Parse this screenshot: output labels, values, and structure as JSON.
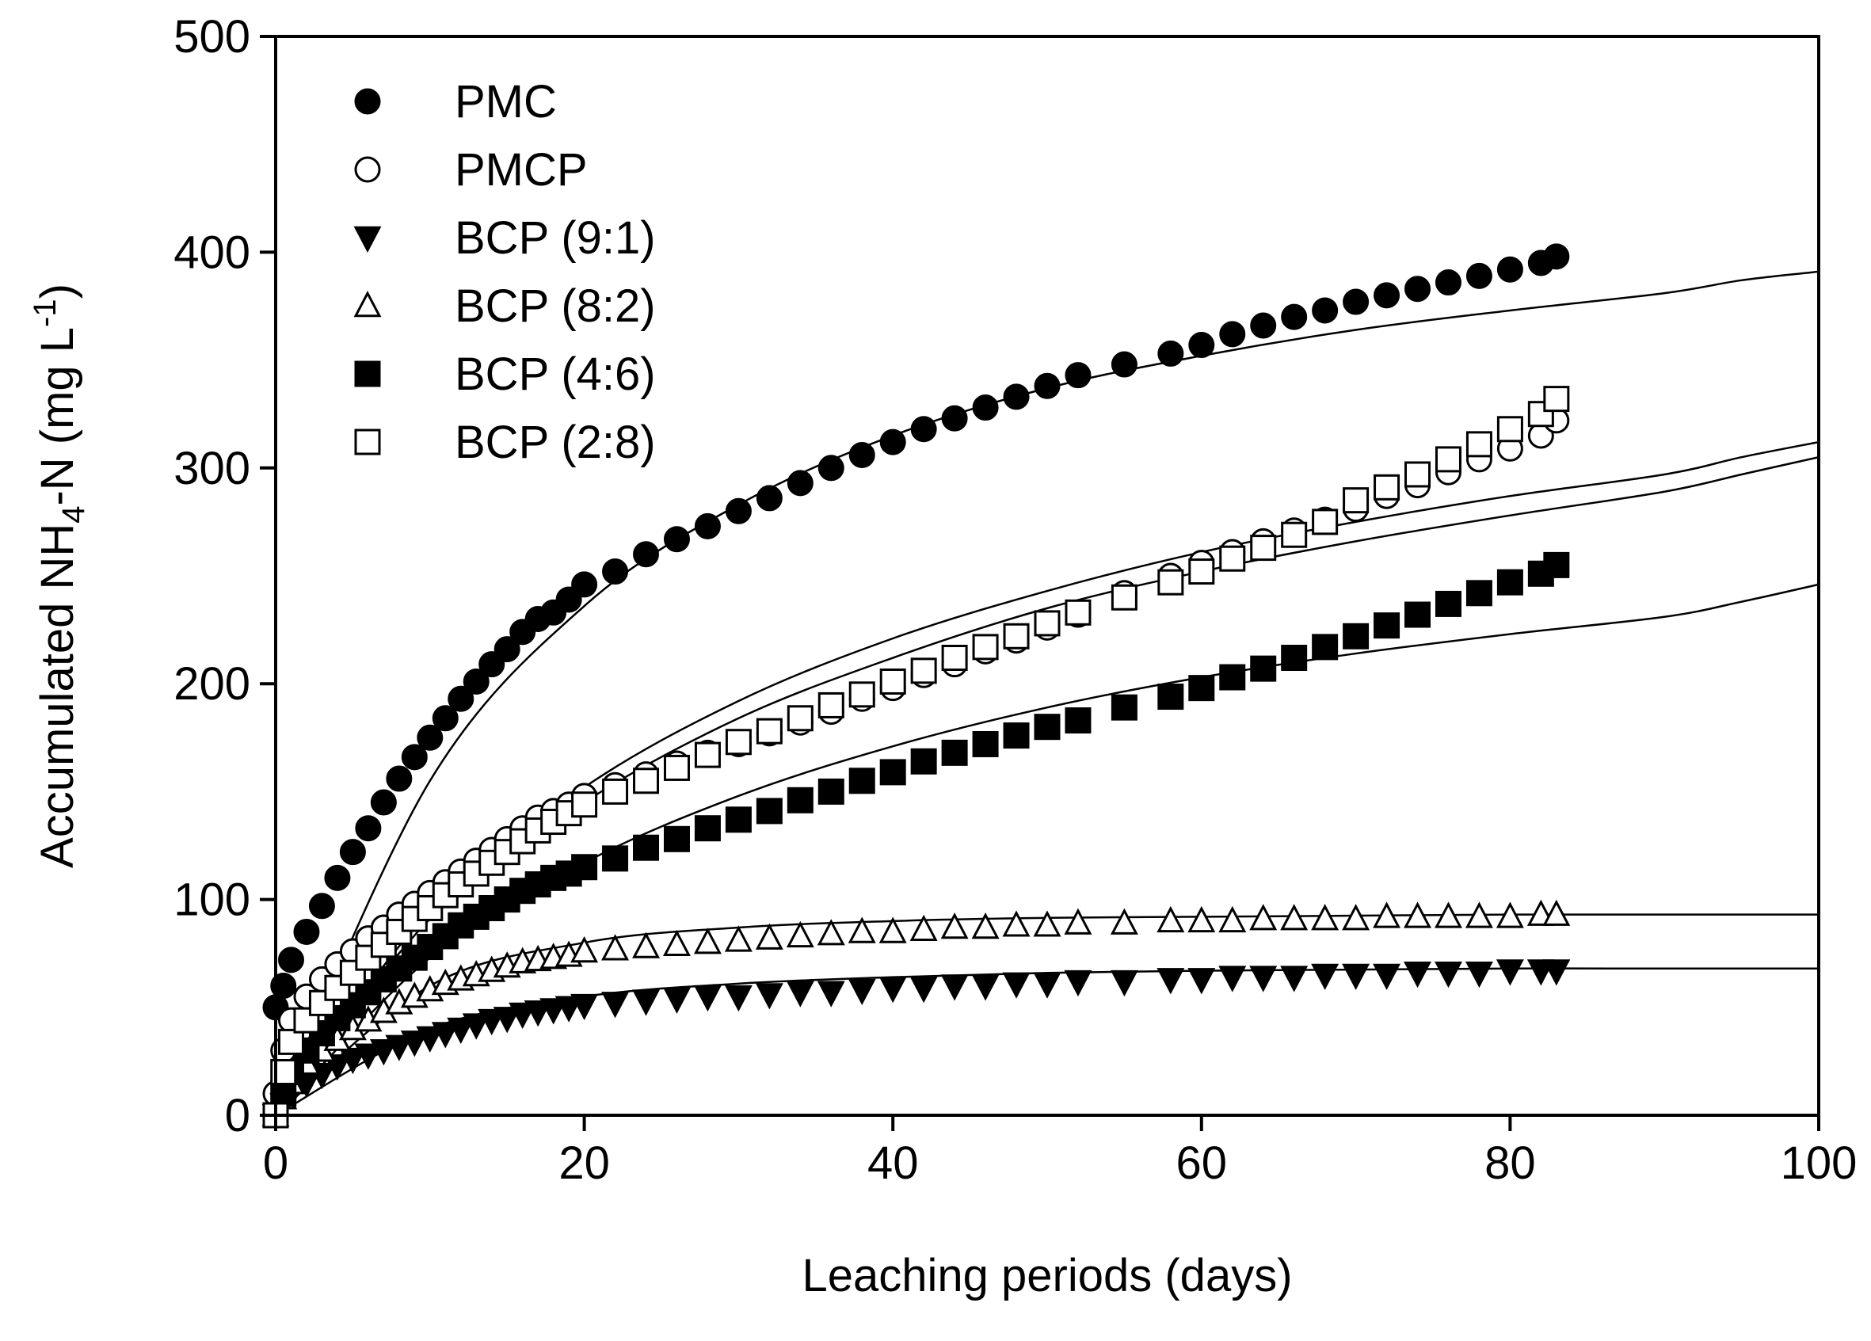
{
  "chart_data": {
    "type": "scatter",
    "xlabel": "Leaching periods (days)",
    "ylabel": {
      "prefix": "Accumulated NH",
      "subscript": "4",
      "middle": "-N (mg L",
      "superscript": "-1",
      "suffix": ")"
    },
    "xlim": [
      0,
      100
    ],
    "ylim": [
      0,
      500
    ],
    "x_ticks": [
      0,
      20,
      40,
      60,
      80,
      100
    ],
    "y_ticks": [
      0,
      100,
      200,
      300,
      400,
      500
    ],
    "grid": false,
    "legend_position": "top-left",
    "fit_lines": "solid thin curves drawn through each series, extending to x = 100",
    "series": [
      {
        "name": "PMC",
        "marker": "filled-circle",
        "x": [
          0,
          0.5,
          1,
          2,
          3,
          4,
          5,
          6,
          7,
          8,
          9,
          10,
          11,
          12,
          13,
          14,
          15,
          16,
          17,
          18,
          19,
          20,
          22,
          24,
          26,
          28,
          30,
          32,
          34,
          36,
          38,
          40,
          42,
          44,
          46,
          48,
          50,
          52,
          55,
          58,
          60,
          62,
          64,
          66,
          68,
          70,
          72,
          74,
          76,
          78,
          80,
          82,
          83
        ],
        "y": [
          50,
          60,
          72,
          85,
          97,
          110,
          122,
          133,
          145,
          156,
          166,
          175,
          184,
          193,
          201,
          209,
          216,
          224,
          230,
          233,
          239,
          246,
          252,
          260,
          267,
          273,
          280,
          286,
          293,
          300,
          306,
          312,
          318,
          323,
          328,
          333,
          338,
          343,
          348,
          353,
          357,
          362,
          366,
          370,
          373,
          377,
          380,
          383,
          386,
          389,
          392,
          395,
          398
        ],
        "fit_y": [
          0,
          155,
          236,
          283,
          315,
          337,
          352,
          364,
          373,
          381,
          387,
          391
        ]
      },
      {
        "name": "PMCP",
        "marker": "open-circle",
        "x": [
          0,
          0.5,
          1,
          2,
          3,
          4,
          5,
          6,
          7,
          8,
          9,
          10,
          11,
          12,
          13,
          14,
          15,
          16,
          17,
          18,
          19,
          20,
          22,
          24,
          26,
          28,
          30,
          32,
          34,
          36,
          38,
          40,
          42,
          44,
          46,
          48,
          50,
          52,
          55,
          58,
          60,
          62,
          64,
          66,
          68,
          70,
          72,
          74,
          76,
          78,
          80,
          82,
          83
        ],
        "y": [
          10,
          30,
          44,
          55,
          63,
          70,
          76,
          82,
          87,
          93,
          98,
          103,
          108,
          113,
          118,
          123,
          128,
          133,
          138,
          141,
          144,
          148,
          153,
          158,
          163,
          168,
          172,
          177,
          182,
          187,
          193,
          198,
          204,
          209,
          215,
          220,
          226,
          232,
          242,
          250,
          256,
          261,
          266,
          271,
          276,
          281,
          287,
          292,
          298,
          304,
          309,
          315,
          322
        ],
        "fit_y": [
          0,
          91,
          145,
          184,
          212,
          235,
          252,
          266,
          278,
          289,
          297,
          305
        ]
      },
      {
        "name": "BCP (9:1)",
        "marker": "filled-triangle-down",
        "x": [
          0,
          0.5,
          1,
          2,
          3,
          4,
          5,
          6,
          7,
          8,
          9,
          10,
          11,
          12,
          13,
          14,
          15,
          16,
          17,
          18,
          19,
          20,
          22,
          24,
          26,
          28,
          30,
          32,
          34,
          36,
          38,
          40,
          42,
          44,
          46,
          48,
          50,
          52,
          55,
          58,
          60,
          62,
          64,
          66,
          68,
          70,
          72,
          74,
          76,
          78,
          80,
          82,
          83
        ],
        "y": [
          0,
          5,
          10,
          15,
          19,
          23,
          26,
          28,
          30,
          32,
          34,
          36,
          38,
          40,
          42,
          44,
          45,
          47,
          48,
          49,
          50,
          51,
          52,
          53,
          54,
          55,
          55,
          56,
          57,
          57,
          58,
          59,
          59,
          60,
          60,
          61,
          61,
          62,
          62,
          63,
          63,
          64,
          64,
          64,
          65,
          65,
          65,
          66,
          66,
          66,
          67,
          67,
          67
        ],
        "fit_y": [
          0,
          40,
          55,
          61,
          64,
          66,
          67,
          67.5,
          68,
          68,
          68,
          68
        ]
      },
      {
        "name": "BCP (8:2)",
        "marker": "open-triangle-up",
        "x": [
          0,
          0.5,
          1,
          2,
          3,
          4,
          5,
          6,
          7,
          8,
          9,
          10,
          11,
          12,
          13,
          14,
          15,
          16,
          17,
          18,
          19,
          20,
          22,
          24,
          26,
          28,
          30,
          32,
          34,
          36,
          38,
          40,
          42,
          44,
          46,
          48,
          50,
          52,
          55,
          58,
          60,
          62,
          64,
          66,
          68,
          70,
          72,
          74,
          76,
          78,
          80,
          82,
          83
        ],
        "y": [
          0,
          8,
          15,
          24,
          30,
          35,
          40,
          44,
          48,
          52,
          55,
          58,
          61,
          63,
          65,
          67,
          69,
          71,
          72,
          73,
          74,
          76,
          77,
          78,
          79,
          80,
          81,
          82,
          83,
          84,
          85,
          85,
          86,
          87,
          87,
          88,
          88,
          89,
          89,
          90,
          90,
          90,
          91,
          91,
          91,
          91,
          92,
          92,
          92,
          92,
          92,
          93,
          93
        ],
        "fit_y": [
          0,
          60,
          80,
          87,
          90,
          91.5,
          92,
          92.5,
          93,
          93,
          93,
          93
        ]
      },
      {
        "name": "BCP (4:6)",
        "marker": "filled-square",
        "x": [
          0,
          0.5,
          1,
          2,
          3,
          4,
          5,
          6,
          7,
          8,
          9,
          10,
          11,
          12,
          13,
          14,
          15,
          16,
          17,
          18,
          19,
          20,
          22,
          24,
          26,
          28,
          30,
          32,
          34,
          36,
          38,
          40,
          42,
          44,
          46,
          48,
          50,
          52,
          55,
          58,
          60,
          62,
          64,
          66,
          68,
          70,
          72,
          74,
          76,
          78,
          80,
          82,
          83
        ],
        "y": [
          0,
          10,
          20,
          30,
          38,
          45,
          51,
          57,
          63,
          68,
          73,
          78,
          83,
          88,
          92,
          96,
          100,
          104,
          107,
          110,
          112,
          115,
          119,
          124,
          128,
          133,
          137,
          141,
          146,
          150,
          155,
          159,
          164,
          168,
          172,
          176,
          180,
          183,
          189,
          194,
          198,
          203,
          207,
          212,
          217,
          222,
          227,
          232,
          237,
          242,
          247,
          251,
          255
        ],
        "fit_y": [
          0,
          73,
          117,
          148,
          171,
          189,
          203,
          214,
          223,
          231,
          238,
          246
        ]
      },
      {
        "name": "BCP (2:8)",
        "marker": "open-square",
        "x": [
          0,
          0.5,
          1,
          2,
          3,
          4,
          5,
          6,
          7,
          8,
          9,
          10,
          11,
          12,
          13,
          14,
          15,
          16,
          17,
          18,
          19,
          20,
          22,
          24,
          26,
          28,
          30,
          32,
          34,
          36,
          38,
          40,
          42,
          44,
          46,
          48,
          50,
          52,
          55,
          58,
          60,
          62,
          64,
          66,
          68,
          70,
          72,
          74,
          76,
          78,
          80,
          82,
          83
        ],
        "y": [
          0,
          20,
          34,
          44,
          52,
          59,
          66,
          73,
          79,
          85,
          91,
          96,
          102,
          107,
          112,
          117,
          122,
          127,
          132,
          136,
          140,
          144,
          150,
          155,
          161,
          167,
          173,
          178,
          184,
          190,
          195,
          201,
          206,
          212,
          217,
          222,
          228,
          233,
          240,
          247,
          252,
          258,
          263,
          269,
          275,
          285,
          291,
          297,
          304,
          311,
          318,
          325,
          332
        ],
        "fit_y": [
          0,
          95,
          152,
          192,
          221,
          243,
          261,
          275,
          287,
          297,
          305,
          312
        ]
      }
    ],
    "fit_x": [
      0,
      10,
      20,
      30,
      40,
      50,
      60,
      70,
      80,
      90,
      95,
      100
    ]
  }
}
